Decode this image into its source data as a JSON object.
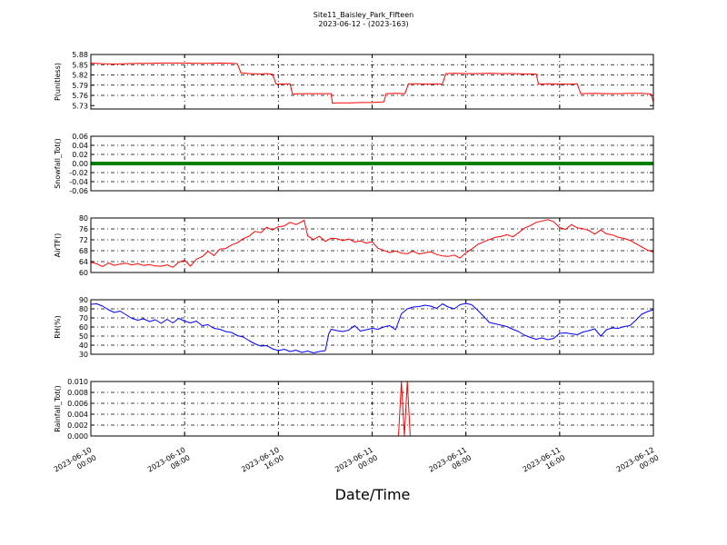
{
  "title": {
    "line1": "Site11_Baisley_Park_Fifteen",
    "line2": "2023-06-12 - (2023-163)"
  },
  "chart_data": {
    "type": "line",
    "xlabel": "Date/Time",
    "x_range": [
      "2023-06-10 00:00",
      "2023-06-12 00:00"
    ],
    "x_ticks": [
      {
        "line1": "2023-06-10",
        "line2": "00:00",
        "hours": 0
      },
      {
        "line1": "2023-06-10",
        "line2": "08:00",
        "hours": 8
      },
      {
        "line1": "2023-06-10",
        "line2": "16:00",
        "hours": 16
      },
      {
        "line1": "2023-06-11",
        "line2": "00:00",
        "hours": 24
      },
      {
        "line1": "2023-06-11",
        "line2": "08:00",
        "hours": 32
      },
      {
        "line1": "2023-06-11",
        "line2": "16:00",
        "hours": 40
      },
      {
        "line1": "2023-06-12",
        "line2": "00:00",
        "hours": 48
      }
    ],
    "grid": true,
    "panels": [
      {
        "ylabel": "P(unitless)",
        "color": "#ff0000",
        "ylim": [
          5.72,
          5.88
        ],
        "yticks": [
          "5.73",
          "5.76",
          "5.79",
          "5.82",
          "5.85",
          "5.88"
        ],
        "ytick_values": [
          5.73,
          5.76,
          5.79,
          5.82,
          5.85,
          5.88
        ],
        "points": [
          [
            0,
            5.855
          ],
          [
            1,
            5.853
          ],
          [
            2,
            5.852
          ],
          [
            3,
            5.853
          ],
          [
            4,
            5.854
          ],
          [
            5,
            5.854
          ],
          [
            6,
            5.855
          ],
          [
            7,
            5.855
          ],
          [
            8,
            5.855
          ],
          [
            9,
            5.854
          ],
          [
            10,
            5.854
          ],
          [
            11,
            5.855
          ],
          [
            12,
            5.854
          ],
          [
            12.5,
            5.853
          ],
          [
            12.8,
            5.826
          ],
          [
            13.5,
            5.824
          ],
          [
            14.5,
            5.823
          ],
          [
            15,
            5.824
          ],
          [
            15.5,
            5.822
          ],
          [
            15.8,
            5.793
          ],
          [
            17,
            5.794
          ],
          [
            17.2,
            5.764
          ],
          [
            18,
            5.765
          ],
          [
            19,
            5.765
          ],
          [
            20.5,
            5.765
          ],
          [
            20.6,
            5.737
          ],
          [
            21,
            5.738
          ],
          [
            22,
            5.738
          ],
          [
            23,
            5.739
          ],
          [
            24,
            5.739
          ],
          [
            25,
            5.741
          ],
          [
            25.2,
            5.765
          ],
          [
            26,
            5.766
          ],
          [
            26.8,
            5.765
          ],
          [
            27.1,
            5.794
          ],
          [
            28,
            5.794
          ],
          [
            29,
            5.793
          ],
          [
            30,
            5.794
          ],
          [
            30.3,
            5.824
          ],
          [
            31,
            5.825
          ],
          [
            32,
            5.824
          ],
          [
            33,
            5.824
          ],
          [
            34,
            5.825
          ],
          [
            35,
            5.824
          ],
          [
            36,
            5.824
          ],
          [
            37,
            5.823
          ],
          [
            38,
            5.823
          ],
          [
            38.2,
            5.793
          ],
          [
            39,
            5.794
          ],
          [
            40,
            5.793
          ],
          [
            41,
            5.793
          ],
          [
            41.5,
            5.794
          ],
          [
            41.8,
            5.765
          ],
          [
            43,
            5.766
          ],
          [
            44,
            5.765
          ],
          [
            45,
            5.765
          ],
          [
            46,
            5.766
          ],
          [
            47,
            5.766
          ],
          [
            47.8,
            5.764
          ],
          [
            48,
            5.74
          ]
        ]
      },
      {
        "ylabel": "Snowfall_Tot()",
        "color": "#008000",
        "ylim": [
          -0.06,
          0.06
        ],
        "yticks": [
          "-0.06",
          "-0.04",
          "-0.02",
          "0.00",
          "0.02",
          "0.04",
          "0.06"
        ],
        "ytick_values": [
          -0.06,
          -0.04,
          -0.02,
          0.0,
          0.02,
          0.04,
          0.06
        ],
        "points": [
          [
            0,
            0
          ],
          [
            48,
            0
          ]
        ],
        "thick": true
      },
      {
        "ylabel": "AirTF()",
        "color": "#ff0000",
        "ylim": [
          60,
          80
        ],
        "yticks": [
          "60",
          "64",
          "68",
          "72",
          "76",
          "80"
        ],
        "ytick_values": [
          60,
          64,
          68,
          72,
          76,
          80
        ],
        "points": [
          [
            0,
            63.8
          ],
          [
            0.5,
            63.2
          ],
          [
            1,
            62.2
          ],
          [
            1.5,
            63.5
          ],
          [
            2,
            62.6
          ],
          [
            2.5,
            63.1
          ],
          [
            3,
            63.4
          ],
          [
            3.5,
            62.8
          ],
          [
            4,
            63.2
          ],
          [
            4.5,
            62.6
          ],
          [
            5,
            62.9
          ],
          [
            5.5,
            62.4
          ],
          [
            6,
            62.3
          ],
          [
            6.5,
            62.8
          ],
          [
            7,
            61.9
          ],
          [
            7.5,
            63.8
          ],
          [
            8,
            64.5
          ],
          [
            8.5,
            62.3
          ],
          [
            9,
            64.9
          ],
          [
            9.5,
            65.8
          ],
          [
            10,
            67.8
          ],
          [
            10.5,
            66.2
          ],
          [
            11,
            68.6
          ],
          [
            11.5,
            68.8
          ],
          [
            12,
            70.1
          ],
          [
            12.5,
            70.9
          ],
          [
            13,
            72.4
          ],
          [
            13.5,
            73.3
          ],
          [
            14,
            75.1
          ],
          [
            14.5,
            74.6
          ],
          [
            15,
            76.6
          ],
          [
            15.5,
            75.6
          ],
          [
            16,
            76.8
          ],
          [
            16.5,
            77.1
          ],
          [
            17,
            78.4
          ],
          [
            17.5,
            77.6
          ],
          [
            18,
            78.6
          ],
          [
            18.2,
            79.2
          ],
          [
            18.5,
            73.4
          ],
          [
            19,
            72.1
          ],
          [
            19.5,
            73.3
          ],
          [
            20,
            71.4
          ],
          [
            20.5,
            72.6
          ],
          [
            21,
            72.4
          ],
          [
            21.5,
            71.7
          ],
          [
            22,
            72.3
          ],
          [
            22.5,
            71.2
          ],
          [
            23,
            71.6
          ],
          [
            23.5,
            70.8
          ],
          [
            24,
            71.3
          ],
          [
            24.5,
            68.9
          ],
          [
            25,
            68.1
          ],
          [
            25.5,
            67.3
          ],
          [
            26,
            67.9
          ],
          [
            26.5,
            67.1
          ],
          [
            27,
            66.9
          ],
          [
            27.5,
            67.8
          ],
          [
            28,
            66.8
          ],
          [
            28.5,
            67.2
          ],
          [
            29,
            67.6
          ],
          [
            29.5,
            66.6
          ],
          [
            30,
            66.1
          ],
          [
            30.5,
            65.9
          ],
          [
            31,
            66.4
          ],
          [
            31.5,
            65.3
          ],
          [
            32,
            67.2
          ],
          [
            32.5,
            68.6
          ],
          [
            33,
            70.3
          ],
          [
            33.5,
            71.2
          ],
          [
            34,
            72.1
          ],
          [
            34.5,
            72.9
          ],
          [
            35,
            73.2
          ],
          [
            35.5,
            73.9
          ],
          [
            36,
            73.1
          ],
          [
            36.5,
            74.6
          ],
          [
            37,
            76.3
          ],
          [
            37.5,
            77.2
          ],
          [
            38,
            78.4
          ],
          [
            38.5,
            78.9
          ],
          [
            39,
            79.4
          ],
          [
            39.5,
            78.6
          ],
          [
            40,
            76.5
          ],
          [
            40.5,
            75.8
          ],
          [
            41,
            77.6
          ],
          [
            41.5,
            76.4
          ],
          [
            42,
            76.1
          ],
          [
            42.5,
            75.4
          ],
          [
            43,
            74.1
          ],
          [
            43.5,
            75.6
          ],
          [
            44,
            74.2
          ],
          [
            44.5,
            73.8
          ],
          [
            45,
            72.9
          ],
          [
            45.5,
            72.5
          ],
          [
            46,
            71.8
          ],
          [
            46.5,
            70.6
          ],
          [
            47,
            69.4
          ],
          [
            47.5,
            68.2
          ],
          [
            48,
            67.5
          ]
        ]
      },
      {
        "ylabel": "RH(%)",
        "color": "#0000ff",
        "ylim": [
          30,
          90
        ],
        "yticks": [
          "30",
          "40",
          "50",
          "60",
          "70",
          "80",
          "90"
        ],
        "ytick_values": [
          30,
          40,
          50,
          60,
          70,
          80,
          90
        ],
        "points": [
          [
            0,
            85
          ],
          [
            0.5,
            85.5
          ],
          [
            1,
            83
          ],
          [
            1.5,
            79
          ],
          [
            2,
            76
          ],
          [
            2.5,
            77.5
          ],
          [
            3,
            73.5
          ],
          [
            3.5,
            69.5
          ],
          [
            4,
            67.5
          ],
          [
            4.5,
            69
          ],
          [
            5,
            66
          ],
          [
            5.5,
            68
          ],
          [
            6,
            64
          ],
          [
            6.5,
            68.5
          ],
          [
            7,
            64.5
          ],
          [
            7.5,
            69.5
          ],
          [
            8,
            66.5
          ],
          [
            8.5,
            64.5
          ],
          [
            9,
            66.5
          ],
          [
            9.5,
            61.5
          ],
          [
            10,
            62.5
          ],
          [
            10.5,
            58.5
          ],
          [
            11,
            57.5
          ],
          [
            11.5,
            55
          ],
          [
            12,
            54
          ],
          [
            12.5,
            50.5
          ],
          [
            13,
            49
          ],
          [
            13.5,
            45
          ],
          [
            14,
            41.5
          ],
          [
            14.5,
            39
          ],
          [
            15,
            39.5
          ],
          [
            15.5,
            36
          ],
          [
            16,
            34
          ],
          [
            16.5,
            35.5
          ],
          [
            17,
            33
          ],
          [
            17.5,
            34.5
          ],
          [
            18,
            32
          ],
          [
            18.5,
            33.5
          ],
          [
            19,
            31.5
          ],
          [
            19.5,
            33
          ],
          [
            20,
            34
          ],
          [
            20.3,
            52.5
          ],
          [
            20.5,
            57.5
          ],
          [
            21,
            56
          ],
          [
            21.5,
            55
          ],
          [
            22,
            56.5
          ],
          [
            22.5,
            61.5
          ],
          [
            23,
            55.5
          ],
          [
            23.5,
            57
          ],
          [
            24,
            58.5
          ],
          [
            24.5,
            57.5
          ],
          [
            25,
            60
          ],
          [
            25.5,
            61.5
          ],
          [
            26,
            57
          ],
          [
            26.5,
            74.5
          ],
          [
            27,
            80
          ],
          [
            27.5,
            82
          ],
          [
            28,
            82.5
          ],
          [
            28.5,
            84
          ],
          [
            29,
            83
          ],
          [
            29.5,
            80.5
          ],
          [
            30,
            85.5
          ],
          [
            30.5,
            82
          ],
          [
            31,
            80
          ],
          [
            31.5,
            84.5
          ],
          [
            32,
            86
          ],
          [
            32.5,
            84.5
          ],
          [
            33,
            78.5
          ],
          [
            33.5,
            72
          ],
          [
            34,
            65
          ],
          [
            34.5,
            63.5
          ],
          [
            35,
            62
          ],
          [
            35.5,
            60.5
          ],
          [
            36,
            57.5
          ],
          [
            36.5,
            55
          ],
          [
            37,
            51
          ],
          [
            37.5,
            48.5
          ],
          [
            38,
            46.5
          ],
          [
            38.5,
            48
          ],
          [
            39,
            46
          ],
          [
            39.5,
            47.5
          ],
          [
            40,
            53
          ],
          [
            40.5,
            53.5
          ],
          [
            41,
            52.5
          ],
          [
            41.5,
            51.5
          ],
          [
            42,
            54.5
          ],
          [
            42.5,
            56
          ],
          [
            43,
            58
          ],
          [
            43.5,
            50
          ],
          [
            44,
            57
          ],
          [
            44.5,
            59
          ],
          [
            45,
            58.5
          ],
          [
            45.5,
            60.5
          ],
          [
            46,
            61.5
          ],
          [
            46.5,
            67.5
          ],
          [
            47,
            74
          ],
          [
            47.5,
            77
          ],
          [
            48,
            79
          ]
        ]
      },
      {
        "ylabel": "Rainfall_Tot()",
        "color": "#ff0000",
        "ylim": [
          0,
          0.01
        ],
        "yticks": [
          "0.000",
          "0.002",
          "0.004",
          "0.006",
          "0.008",
          "0.010"
        ],
        "ytick_values": [
          0,
          0.002,
          0.004,
          0.006,
          0.008,
          0.01
        ],
        "points": [
          [
            0,
            0
          ],
          [
            26.25,
            0
          ],
          [
            26.5,
            0.01
          ],
          [
            26.75,
            0
          ],
          [
            27.0,
            0.01
          ],
          [
            27.25,
            0
          ],
          [
            48,
            0
          ]
        ]
      }
    ]
  }
}
